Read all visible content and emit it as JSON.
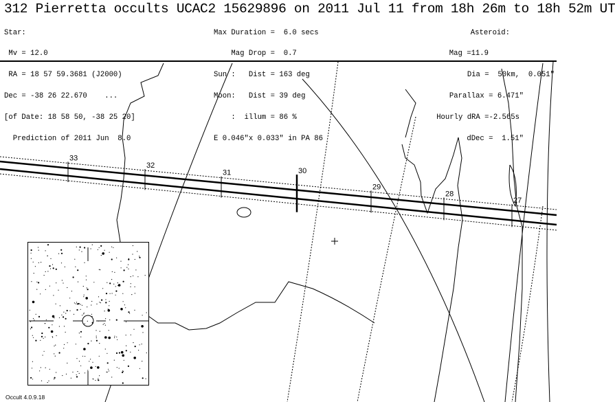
{
  "title": "312 Pierretta occults UCAC2 15629896 on 2011 Jul 11 from 18h 26m to 18h 52m UT",
  "star": {
    "heading": "Star:",
    "mv": " Mv = 12.0",
    "ra": " RA = 18 57 59.3681 (J2000)",
    "dec": "Dec = -38 26 22.670    ...",
    "of_date": "[of Date: 18 58 50, -38 25 20]",
    "prediction": "  Prediction of 2011 Jun  8.0"
  },
  "event": {
    "max_duration": "Max Duration =  6.0 secs",
    "mag_drop": "    Mag Drop =  0.7",
    "sun": "Sun :   Dist = 163 deg",
    "moon": "Moon:   Dist = 39 deg",
    "illum": "    :  illum = 86 %",
    "error_ellipse": "E 0.046\"x 0.033\" in PA 86"
  },
  "asteroid": {
    "heading": "Asteroid:",
    "mag": "Mag =11.9",
    "dia": "Dia =  50km,  0.051\"",
    "parallax": "Parallax = 6.471\"",
    "hourly_dra": "Hourly dRA =-2.565s",
    "ddec": "dDec =  1.51\""
  },
  "path_time_ticks": [
    "33",
    "32",
    "31",
    "30",
    "29",
    "28",
    "27"
  ],
  "version": "Occult 4.0.9.18",
  "colors": {
    "ink": "#000000",
    "background": "#ffffff"
  }
}
